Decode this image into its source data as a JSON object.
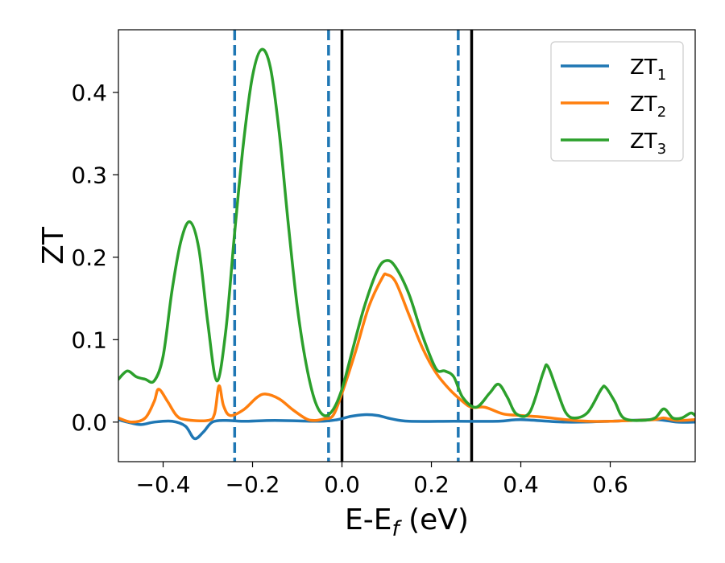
{
  "chart_data": {
    "type": "line",
    "title": "",
    "xlabel": "E-E_f (eV)",
    "ylabel": "ZT",
    "xlim": [
      -0.5,
      0.79
    ],
    "ylim": [
      -0.048,
      0.476
    ],
    "x_ticks": [
      -0.4,
      -0.2,
      0.0,
      0.2,
      0.4,
      0.6
    ],
    "x_tick_labels": [
      "−0.4",
      "−0.2",
      "0.0",
      "0.2",
      "0.4",
      "0.6"
    ],
    "y_ticks": [
      0.0,
      0.1,
      0.2,
      0.3,
      0.4
    ],
    "y_tick_labels": [
      "0.0",
      "0.1",
      "0.2",
      "0.3",
      "0.4"
    ],
    "grid": false,
    "legend_position": "top-right",
    "vertical_lines": [
      {
        "x": -0.24,
        "style": "dashed",
        "color": "#1f77b4"
      },
      {
        "x": -0.03,
        "style": "dashed",
        "color": "#1f77b4"
      },
      {
        "x": 0.0,
        "style": "solid",
        "color": "#000000"
      },
      {
        "x": 0.26,
        "style": "dashed",
        "color": "#1f77b4"
      },
      {
        "x": 0.29,
        "style": "solid",
        "color": "#000000"
      }
    ],
    "series": [
      {
        "name": "ZT",
        "subscript": "1",
        "color": "#1f77b4",
        "points": [
          [
            -0.5,
            0.003
          ],
          [
            -0.48,
            0.0
          ],
          [
            -0.45,
            -0.003
          ],
          [
            -0.42,
            0.0
          ],
          [
            -0.38,
            0.001
          ],
          [
            -0.35,
            -0.005
          ],
          [
            -0.33,
            -0.02
          ],
          [
            -0.31,
            -0.012
          ],
          [
            -0.29,
            0.0
          ],
          [
            -0.26,
            0.002
          ],
          [
            -0.22,
            0.001
          ],
          [
            -0.15,
            0.002
          ],
          [
            -0.05,
            0.001
          ],
          [
            -0.01,
            0.003
          ],
          [
            0.02,
            0.007
          ],
          [
            0.05,
            0.009
          ],
          [
            0.08,
            0.008
          ],
          [
            0.11,
            0.004
          ],
          [
            0.15,
            0.001
          ],
          [
            0.25,
            0.001
          ],
          [
            0.35,
            0.001
          ],
          [
            0.4,
            0.003
          ],
          [
            0.5,
            0.0
          ],
          [
            0.6,
            0.001
          ],
          [
            0.7,
            0.003
          ],
          [
            0.75,
            0.0
          ],
          [
            0.79,
            0.0
          ]
        ]
      },
      {
        "name": "ZT",
        "subscript": "2",
        "color": "#ff7f0e",
        "points": [
          [
            -0.5,
            0.005
          ],
          [
            -0.47,
            0.0
          ],
          [
            -0.44,
            0.005
          ],
          [
            -0.42,
            0.025
          ],
          [
            -0.41,
            0.04
          ],
          [
            -0.39,
            0.025
          ],
          [
            -0.37,
            0.008
          ],
          [
            -0.35,
            0.003
          ],
          [
            -0.3,
            0.002
          ],
          [
            -0.285,
            0.01
          ],
          [
            -0.275,
            0.044
          ],
          [
            -0.265,
            0.02
          ],
          [
            -0.25,
            0.008
          ],
          [
            -0.22,
            0.015
          ],
          [
            -0.19,
            0.03
          ],
          [
            -0.17,
            0.034
          ],
          [
            -0.14,
            0.028
          ],
          [
            -0.11,
            0.015
          ],
          [
            -0.08,
            0.004
          ],
          [
            -0.06,
            0.002
          ],
          [
            -0.04,
            0.004
          ],
          [
            -0.02,
            0.008
          ],
          [
            0.0,
            0.035
          ],
          [
            0.03,
            0.085
          ],
          [
            0.06,
            0.14
          ],
          [
            0.09,
            0.175
          ],
          [
            0.1,
            0.179
          ],
          [
            0.12,
            0.17
          ],
          [
            0.15,
            0.13
          ],
          [
            0.18,
            0.09
          ],
          [
            0.21,
            0.06
          ],
          [
            0.24,
            0.04
          ],
          [
            0.27,
            0.025
          ],
          [
            0.29,
            0.018
          ],
          [
            0.32,
            0.018
          ],
          [
            0.36,
            0.01
          ],
          [
            0.4,
            0.008
          ],
          [
            0.45,
            0.006
          ],
          [
            0.5,
            0.003
          ],
          [
            0.55,
            0.001
          ],
          [
            0.6,
            0.001
          ],
          [
            0.65,
            0.002
          ],
          [
            0.7,
            0.003
          ],
          [
            0.72,
            0.005
          ],
          [
            0.75,
            0.002
          ],
          [
            0.79,
            0.003
          ]
        ]
      },
      {
        "name": "ZT",
        "subscript": "3",
        "color": "#2ca02c",
        "points": [
          [
            -0.5,
            0.052
          ],
          [
            -0.48,
            0.062
          ],
          [
            -0.46,
            0.055
          ],
          [
            -0.44,
            0.052
          ],
          [
            -0.42,
            0.05
          ],
          [
            -0.4,
            0.08
          ],
          [
            -0.38,
            0.16
          ],
          [
            -0.36,
            0.22
          ],
          [
            -0.34,
            0.243
          ],
          [
            -0.32,
            0.21
          ],
          [
            -0.3,
            0.12
          ],
          [
            -0.28,
            0.05
          ],
          [
            -0.26,
            0.11
          ],
          [
            -0.24,
            0.23
          ],
          [
            -0.22,
            0.34
          ],
          [
            -0.2,
            0.42
          ],
          [
            -0.18,
            0.452
          ],
          [
            -0.16,
            0.43
          ],
          [
            -0.14,
            0.35
          ],
          [
            -0.12,
            0.24
          ],
          [
            -0.1,
            0.14
          ],
          [
            -0.08,
            0.07
          ],
          [
            -0.06,
            0.025
          ],
          [
            -0.04,
            0.008
          ],
          [
            -0.02,
            0.015
          ],
          [
            0.0,
            0.04
          ],
          [
            0.02,
            0.08
          ],
          [
            0.05,
            0.14
          ],
          [
            0.08,
            0.185
          ],
          [
            0.1,
            0.196
          ],
          [
            0.12,
            0.188
          ],
          [
            0.15,
            0.155
          ],
          [
            0.18,
            0.105
          ],
          [
            0.21,
            0.065
          ],
          [
            0.23,
            0.062
          ],
          [
            0.25,
            0.055
          ],
          [
            0.27,
            0.03
          ],
          [
            0.3,
            0.018
          ],
          [
            0.33,
            0.035
          ],
          [
            0.35,
            0.046
          ],
          [
            0.37,
            0.03
          ],
          [
            0.39,
            0.01
          ],
          [
            0.42,
            0.012
          ],
          [
            0.45,
            0.06
          ],
          [
            0.46,
            0.068
          ],
          [
            0.48,
            0.04
          ],
          [
            0.5,
            0.012
          ],
          [
            0.52,
            0.005
          ],
          [
            0.55,
            0.012
          ],
          [
            0.58,
            0.04
          ],
          [
            0.59,
            0.042
          ],
          [
            0.61,
            0.025
          ],
          [
            0.63,
            0.005
          ],
          [
            0.67,
            0.002
          ],
          [
            0.7,
            0.005
          ],
          [
            0.72,
            0.016
          ],
          [
            0.74,
            0.005
          ],
          [
            0.76,
            0.005
          ],
          [
            0.78,
            0.011
          ],
          [
            0.79,
            0.008
          ]
        ]
      }
    ]
  }
}
